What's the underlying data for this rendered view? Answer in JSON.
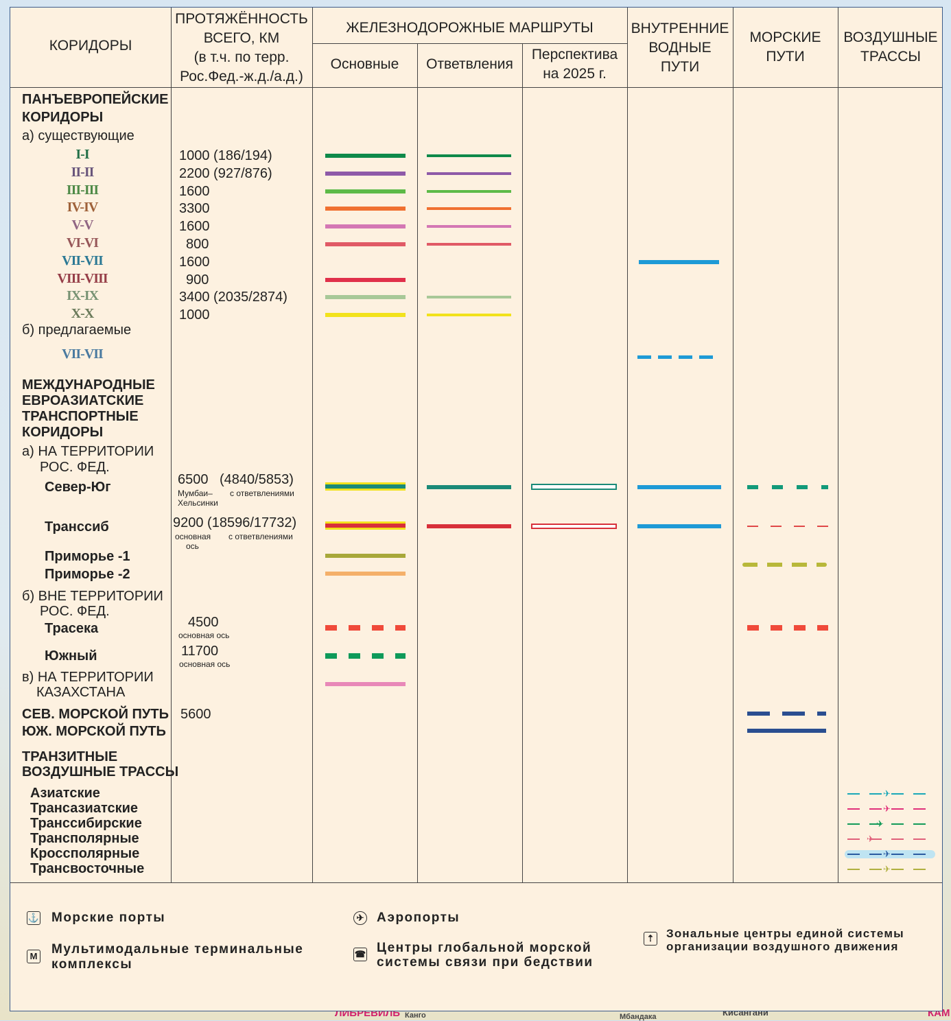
{
  "headers": {
    "corridors": "КОРИДОРЫ",
    "length_line1": "ПРОТЯЖЁННОСТЬ",
    "length_line2": "ВСЕГО, КМ",
    "length_line3": "(в т.ч. по терр.",
    "length_line4": "Рос.Фед.-ж.д./а.д.)",
    "rail": "ЖЕЛЕЗНОДОРОЖНЫЕ МАРШРУТЫ",
    "rail_main": "Основные",
    "rail_branches": "Ответвления",
    "rail_future_line1": "Перспектива",
    "rail_future_line2": "на 2025 г.",
    "inland_line1": "ВНУТРЕННИЕ",
    "inland_line2": "ВОДНЫЕ",
    "inland_line3": "ПУТИ",
    "sea_line1": "МОРСКИЕ",
    "sea_line2": "ПУТИ",
    "air_line1": "ВОЗДУШНЫЕ",
    "air_line2": "ТРАССЫ"
  },
  "sections": {
    "paneuro_line1": "ПАНЪЕВРОПЕЙСКИЕ",
    "paneuro_line2": "КОРИДОРЫ",
    "existing": "а) существующие",
    "proposed": "б) предлагаемые",
    "intl_line1": "МЕЖДУНАРОДНЫЕ",
    "intl_line2": "ЕВРОАЗИАТСКИЕ",
    "intl_line3": "ТРАНСПОРТНЫЕ",
    "intl_line4": "КОРИДОРЫ",
    "in_rf_line1": "а) НА ТЕРРИТОРИИ",
    "in_rf_line2": "РОС. ФЕД.",
    "out_rf_line1": "б) ВНЕ ТЕРРИТОРИИ",
    "out_rf_line2": "РОС. ФЕД.",
    "kz_line1": "в) НА ТЕРРИТОРИИ",
    "kz_line2": "КАЗАХСТАНА",
    "transit_air_line1": "ТРАНЗИТНЫЕ",
    "transit_air_line2": "ВОЗДУШНЫЕ ТРАССЫ"
  },
  "paneuro": [
    {
      "name": "I-I",
      "length": "1000 (186/194)",
      "color": "#0e8a4a"
    },
    {
      "name": "II-II",
      "length": "2200 (927/876)",
      "color": "#8e5aa8"
    },
    {
      "name": "III-III",
      "length": "1600",
      "color": "#5dba47"
    },
    {
      "name": "IV-IV",
      "length": "3300",
      "color": "#f07030"
    },
    {
      "name": "V-V",
      "length": "1600",
      "color": "#d477b4"
    },
    {
      "name": "VI-VI",
      "length": "800",
      "color": "#e05a66"
    },
    {
      "name": "VII-VII",
      "length": "1600",
      "color": "#1e9ad6"
    },
    {
      "name": "VIII-VIII",
      "length": "900",
      "color": "#e0304a"
    },
    {
      "name": "IX-IX",
      "length": "3400 (2035/2874)",
      "color": "#a8c898"
    },
    {
      "name": "X-X",
      "length": "1000",
      "color": "#f2e21c"
    }
  ],
  "proposed_corridor": "VII-VII",
  "intl": {
    "north_south": "Север-Юг",
    "ns_length": "6500",
    "ns_length_rf": "(4840/5853)",
    "ns_note1": "Мумбаи–",
    "ns_note2": "Хельсинки",
    "ns_note3": "с ответвлениями",
    "transsib": "Транссиб",
    "ts_length": "9200 (18596/17732)",
    "ts_note1": "основная",
    "ts_note2": "ось",
    "ts_note3": "с ответвлениями",
    "primorye1": "Приморье -1",
    "primorye2": "Приморье -2",
    "traseka": "Трасека",
    "traseka_length": "4500",
    "traseka_note": "основная ось",
    "south": "Южный",
    "south_length": "11700",
    "south_note": "основная ось",
    "nsr": "СЕВ. МОРСКОЙ ПУТЬ",
    "nsr_length": "5600",
    "ssr": "ЮЖ. МОРСКОЙ ПУТЬ"
  },
  "air_routes": [
    "Азиатские",
    "Трансазиатские",
    "Транссибирские",
    "Трансполярные",
    "Кроссполярные",
    "Трансвосточные"
  ],
  "air_colors": [
    "#1aa8b8",
    "#e0307a",
    "#129a58",
    "#e0607a",
    "#2a5aa0",
    "#b0b040"
  ],
  "colors": {
    "ns_rail": "#1a8a78",
    "ts_rail": "#d8303a",
    "inland": "#1e9ad6",
    "primorye1": "#a8a83a",
    "primorye2": "#f4b06a",
    "traseka": "#f04a3a",
    "south": "#0e9a5a",
    "kz": "#e888b8",
    "nsr": "#2a4e90",
    "primorye1_sea": "#b8b83a",
    "ns_sea": "#129a7a",
    "ts_sea": "#e04848"
  },
  "legend": {
    "sea_ports": "Морские порты",
    "airports": "Аэропорты",
    "multimodal_line1": "Мультимодальные терминальные",
    "multimodal_line2": "комплексы",
    "distress_line1": "Центры глобальной морской",
    "distress_line2": "системы связи при бедствии",
    "zonal_line1": "Зональные центры единой системы",
    "zonal_line2": "организации воздушного движения",
    "m_icon": "М"
  },
  "map_labels": {
    "libreville": "ЛИБРЕВИЛЬ",
    "kisangani": "Кисангани",
    "kam": "КАМ",
    "kango": "Канго",
    "mbandaka": "Мбандака"
  }
}
